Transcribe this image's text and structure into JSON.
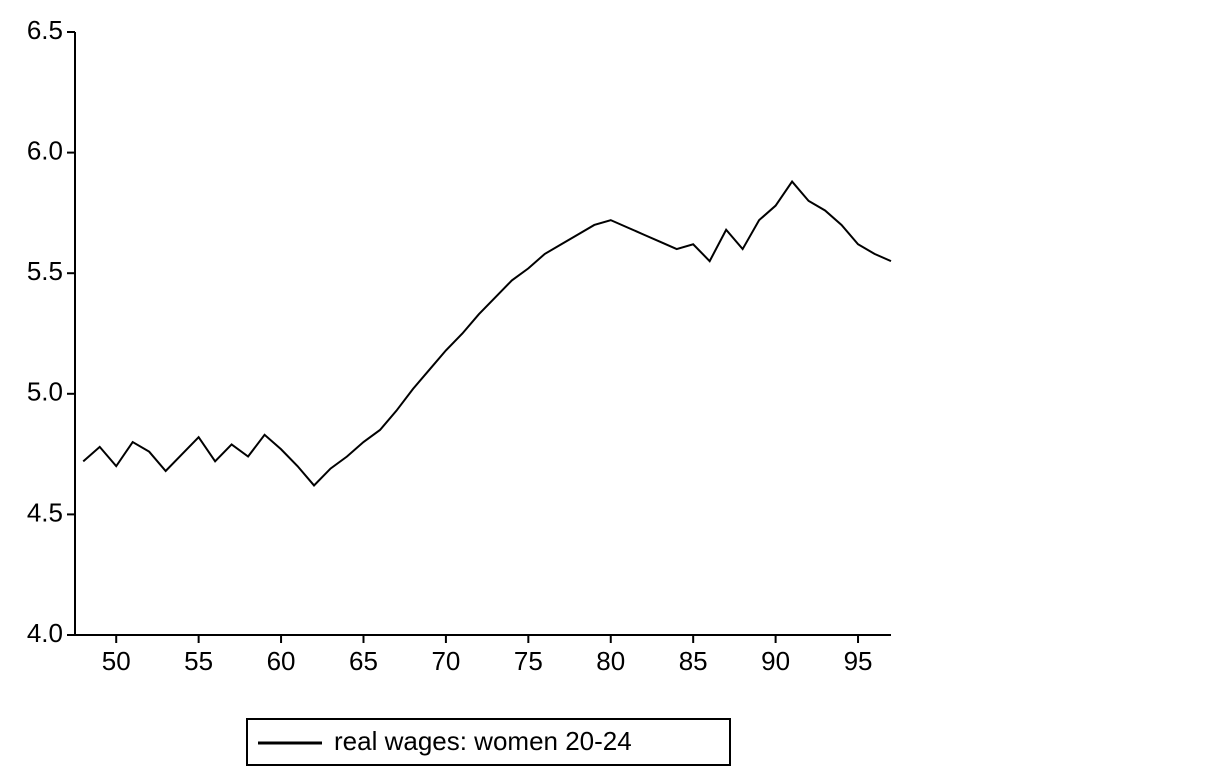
{
  "chart_data": {
    "type": "line",
    "x": [
      48,
      49,
      50,
      51,
      52,
      53,
      54,
      55,
      56,
      57,
      58,
      59,
      60,
      61,
      62,
      63,
      64,
      65,
      66,
      67,
      68,
      69,
      70,
      71,
      72,
      73,
      74,
      75,
      76,
      77,
      78,
      79,
      80,
      81,
      82,
      83,
      84,
      85,
      86,
      87,
      88,
      89,
      90,
      91,
      92,
      93,
      94,
      95,
      96,
      97
    ],
    "series": [
      {
        "name": "real wages: women 20-24",
        "color": "#000000",
        "values": [
          4.72,
          4.78,
          4.7,
          4.8,
          4.76,
          4.68,
          4.75,
          4.82,
          4.72,
          4.79,
          4.74,
          4.83,
          4.77,
          4.7,
          4.62,
          4.69,
          4.74,
          4.8,
          4.85,
          4.93,
          5.02,
          5.1,
          5.18,
          5.25,
          5.33,
          5.4,
          5.47,
          5.52,
          5.58,
          5.62,
          5.66,
          5.7,
          5.72,
          5.69,
          5.66,
          5.63,
          5.6,
          5.62,
          5.55,
          5.68,
          5.6,
          5.72,
          5.78,
          5.88,
          5.8,
          5.76,
          5.7,
          5.62,
          5.58,
          5.55
        ]
      }
    ],
    "xlim": [
      47.5,
      97
    ],
    "xticks": [
      50,
      55,
      60,
      65,
      70,
      75,
      80,
      85,
      90,
      95
    ],
    "ylim": [
      4,
      6.5
    ],
    "yticks": [
      {
        "value": 4,
        "label": "4.0"
      },
      {
        "value": 4.5,
        "label": "4.5"
      },
      {
        "value": 5,
        "label": "5.0"
      },
      {
        "value": 5.5,
        "label": "5.5"
      },
      {
        "value": 6,
        "label": "6.0"
      },
      {
        "value": 6.5,
        "label": "6.5"
      }
    ],
    "grid": false,
    "legend": "bottom"
  }
}
